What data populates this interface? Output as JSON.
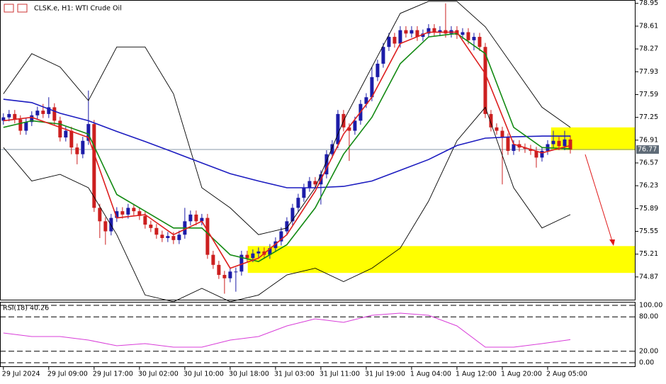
{
  "chart_data": [
    {
      "type": "candlestick",
      "title": "CLSK.e, H1: WTI Crude Oil",
      "ylim": [
        74.52,
        79.0
      ],
      "yticks": [
        78.95,
        78.61,
        78.27,
        77.93,
        77.59,
        77.25,
        76.91,
        76.57,
        76.23,
        75.89,
        75.55,
        75.21,
        74.87
      ],
      "xlim": [
        -0.6,
        111.5
      ],
      "xticks": [
        {
          "value": 0,
          "label": "29 Jul 2024"
        },
        {
          "value": 8,
          "label": "29 Jul 09:00"
        },
        {
          "value": 16,
          "label": "29 Jul 17:00"
        },
        {
          "value": 24,
          "label": "30 Jul 02:00"
        },
        {
          "value": 32,
          "label": "30 Jul 10:00"
        },
        {
          "value": 40,
          "label": "30 Jul 18:00"
        },
        {
          "value": 48,
          "label": "31 Jul 03:00"
        },
        {
          "value": 56,
          "label": "31 Jul 11:00"
        },
        {
          "value": 64,
          "label": "31 Jul 19:00"
        },
        {
          "value": 72,
          "label": "1 Aug 04:00"
        },
        {
          "value": 80,
          "label": "1 Aug 12:00"
        },
        {
          "value": 88,
          "label": "1 Aug 20:00"
        },
        {
          "value": 96,
          "label": "2 Aug 05:00"
        }
      ],
      "up_color": "#1c1ca8",
      "down_color": "#cc1f1f",
      "open": [
        77.2,
        77.25,
        77.3,
        77.22,
        77.05,
        77.18,
        77.28,
        77.35,
        77.3,
        77.4,
        77.2,
        76.95,
        77.05,
        76.8,
        76.7,
        76.9,
        77.15,
        75.9,
        75.7,
        75.55,
        75.75,
        75.85,
        75.8,
        75.9,
        75.85,
        75.78,
        75.65,
        75.6,
        75.5,
        75.45,
        75.48,
        75.42,
        75.5,
        75.7,
        75.8,
        75.7,
        75.75,
        75.2,
        75.05,
        74.9,
        74.85,
        74.95,
        74.95,
        75.2,
        75.15,
        75.22,
        75.25,
        75.2,
        75.3,
        75.4,
        75.55,
        75.7,
        75.9,
        76.05,
        76.2,
        76.3,
        76.25,
        76.4,
        76.7,
        76.85,
        77.3,
        77.1,
        77.05,
        77.2,
        77.45,
        77.55,
        77.85,
        78.05,
        78.3,
        78.45,
        78.35,
        78.55,
        78.5,
        78.55,
        78.45,
        78.5,
        78.58,
        78.52,
        78.55,
        78.5,
        78.55,
        78.48,
        78.52,
        78.4,
        78.45,
        78.3,
        77.3,
        77.1,
        77.05,
        76.95,
        76.75,
        76.85,
        76.8,
        76.78,
        76.75,
        76.65,
        76.75,
        76.85,
        76.9,
        76.82,
        76.92
      ],
      "high": [
        77.31,
        77.36,
        77.36,
        77.28,
        77.24,
        77.34,
        77.41,
        77.45,
        77.55,
        77.46,
        77.26,
        77.11,
        77.11,
        76.86,
        76.96,
        77.65,
        77.21,
        75.96,
        75.76,
        75.81,
        75.91,
        75.91,
        75.96,
        75.96,
        75.91,
        75.84,
        75.71,
        75.66,
        75.56,
        75.54,
        75.54,
        75.56,
        75.9,
        75.86,
        75.86,
        75.81,
        75.81,
        75.26,
        75.11,
        74.96,
        75.01,
        75.01,
        75.26,
        75.26,
        75.28,
        75.31,
        75.31,
        75.36,
        75.46,
        75.61,
        75.76,
        75.96,
        76.11,
        76.26,
        76.36,
        76.36,
        76.46,
        76.76,
        76.91,
        77.36,
        77.36,
        77.16,
        77.26,
        77.51,
        77.61,
        78.0,
        78.11,
        78.36,
        78.51,
        78.51,
        78.61,
        78.61,
        78.61,
        78.61,
        78.56,
        78.64,
        78.64,
        78.61,
        78.95,
        78.61,
        78.61,
        78.58,
        78.58,
        78.51,
        78.51,
        78.36,
        77.36,
        77.16,
        77.11,
        77.01,
        76.91,
        76.91,
        76.86,
        76.84,
        76.81,
        76.81,
        76.91,
        77.05,
        76.96,
        77.05,
        76.98
      ],
      "low": [
        77.14,
        77.19,
        77.16,
        76.99,
        76.99,
        77.12,
        77.22,
        77.24,
        77.24,
        77.14,
        76.89,
        76.89,
        76.7,
        76.55,
        76.64,
        76.84,
        75.84,
        75.45,
        75.35,
        75.49,
        75.69,
        75.74,
        75.74,
        75.79,
        75.72,
        75.59,
        75.54,
        75.44,
        75.39,
        75.39,
        75.36,
        75.36,
        75.44,
        75.64,
        75.64,
        75.64,
        75.14,
        74.99,
        74.84,
        74.62,
        74.79,
        74.65,
        74.89,
        75.09,
        75.09,
        75.16,
        75.14,
        75.14,
        75.24,
        75.34,
        75.49,
        75.64,
        75.84,
        75.99,
        76.14,
        76.19,
        75.95,
        76.34,
        76.64,
        76.79,
        77.04,
        76.6,
        76.99,
        77.14,
        77.39,
        77.49,
        77.79,
        77.99,
        78.24,
        78.29,
        78.29,
        78.44,
        78.44,
        78.39,
        78.39,
        78.44,
        78.46,
        78.46,
        78.44,
        78.44,
        78.42,
        78.42,
        78.34,
        78.25,
        78.24,
        77.24,
        77.04,
        76.99,
        76.25,
        76.69,
        76.69,
        76.74,
        76.72,
        76.69,
        76.5,
        76.59,
        76.69,
        76.79,
        76.76,
        76.76,
        76.71
      ],
      "close": [
        77.25,
        77.3,
        77.22,
        77.05,
        77.18,
        77.28,
        77.35,
        77.3,
        77.4,
        77.2,
        76.95,
        77.05,
        76.8,
        76.7,
        76.9,
        77.15,
        75.9,
        75.7,
        75.55,
        75.75,
        75.85,
        75.8,
        75.9,
        75.85,
        75.78,
        75.65,
        75.6,
        75.5,
        75.45,
        75.48,
        75.42,
        75.5,
        75.7,
        75.8,
        75.7,
        75.75,
        75.2,
        75.05,
        74.9,
        74.85,
        74.95,
        74.95,
        75.2,
        75.15,
        75.22,
        75.25,
        75.2,
        75.3,
        75.4,
        75.55,
        75.7,
        75.9,
        76.05,
        76.2,
        76.3,
        76.25,
        76.4,
        76.7,
        76.85,
        77.3,
        77.1,
        77.05,
        77.2,
        77.45,
        77.55,
        77.85,
        78.05,
        78.3,
        78.45,
        78.35,
        78.55,
        78.5,
        78.55,
        78.45,
        78.5,
        78.58,
        78.52,
        78.55,
        78.5,
        78.55,
        78.48,
        78.52,
        78.4,
        78.45,
        78.3,
        77.3,
        77.1,
        77.05,
        76.95,
        76.75,
        76.85,
        76.8,
        76.78,
        76.75,
        76.65,
        76.75,
        76.85,
        76.9,
        76.82,
        76.92,
        76.77
      ],
      "last_price": 76.77,
      "lines": [
        {
          "color": "#000000",
          "x": [
            0,
            5,
            10,
            15,
            20,
            25,
            30,
            35,
            40,
            45,
            50,
            55,
            60,
            65,
            70,
            75,
            80,
            85,
            90,
            95,
            100
          ],
          "values": [
            77.6,
            78.2,
            78.0,
            77.5,
            78.3,
            78.3,
            77.6,
            76.2,
            75.9,
            75.5,
            75.6,
            76.2,
            77.2,
            78.0,
            78.8,
            78.98,
            78.98,
            78.6,
            78.0,
            77.4,
            77.1
          ]
        },
        {
          "color": "#000000",
          "x": [
            0,
            5,
            10,
            15,
            20,
            25,
            30,
            35,
            40,
            45,
            50,
            55,
            60,
            65,
            70,
            75,
            80,
            85,
            90,
            95,
            100
          ],
          "values": [
            76.8,
            76.3,
            76.4,
            76.2,
            75.5,
            74.6,
            74.5,
            74.7,
            74.5,
            74.6,
            74.9,
            75.0,
            74.8,
            75.0,
            75.3,
            76.0,
            76.9,
            77.4,
            76.2,
            75.6,
            75.8
          ]
        },
        {
          "color": "#1c1cc0",
          "x": [
            0,
            5,
            10,
            15,
            20,
            25,
            30,
            35,
            40,
            45,
            50,
            55,
            60,
            65,
            70,
            75,
            80,
            85,
            90,
            95,
            100
          ],
          "values": [
            77.52,
            77.47,
            77.31,
            77.2,
            77.04,
            76.89,
            76.73,
            76.57,
            76.41,
            76.3,
            76.2,
            76.2,
            76.22,
            76.3,
            76.46,
            76.62,
            76.83,
            76.94,
            76.96,
            76.97,
            76.97
          ]
        },
        {
          "color": "#138a13",
          "x": [
            0,
            5,
            10,
            15,
            20,
            25,
            30,
            35,
            40,
            45,
            50,
            55,
            60,
            65,
            70,
            75,
            80,
            85,
            90,
            95,
            100
          ],
          "values": [
            77.1,
            77.2,
            77.15,
            77.0,
            76.1,
            75.85,
            75.6,
            75.6,
            75.2,
            75.1,
            75.35,
            75.9,
            76.7,
            77.25,
            78.05,
            78.45,
            78.5,
            78.2,
            77.1,
            76.8,
            76.78
          ]
        },
        {
          "color": "#dd1e1e",
          "x": [
            0,
            5,
            10,
            15,
            20,
            25,
            30,
            35,
            40,
            45,
            50,
            55,
            60,
            65,
            70,
            75,
            80,
            85,
            90,
            95,
            100
          ],
          "values": [
            77.2,
            77.25,
            77.1,
            76.95,
            75.75,
            75.8,
            75.5,
            75.7,
            75.0,
            75.15,
            75.5,
            76.15,
            77.0,
            77.55,
            78.35,
            78.52,
            78.52,
            77.9,
            76.85,
            76.72,
            76.83
          ]
        }
      ],
      "zones": [
        {
          "x_start": 96.6,
          "low": 76.76,
          "high": 77.1,
          "color": "#ffff00"
        },
        {
          "x_start": 43.1,
          "low": 74.93,
          "high": 75.33,
          "color": "#ffff00"
        }
      ]
    },
    {
      "type": "line",
      "title": "RSI(18) 40.26",
      "ylim": [
        0,
        100
      ],
      "yticks": [
        {
          "value": 100,
          "label": "100.00"
        },
        {
          "value": 80,
          "label": "80.00"
        },
        {
          "value": 20,
          "label": "20.00"
        },
        {
          "value": 0,
          "label": "0.00"
        }
      ],
      "series": [
        {
          "color": "#d83cd8",
          "x": [
            0,
            5,
            10,
            15,
            20,
            25,
            30,
            35,
            40,
            45,
            50,
            55,
            60,
            65,
            70,
            75,
            80,
            85,
            90,
            95,
            100
          ],
          "values": [
            51.9,
            45.7,
            45.7,
            39.5,
            29.6,
            33.3,
            27.2,
            27.2,
            39.5,
            45.7,
            64.2,
            76.5,
            70.4,
            82.7,
            86.4,
            82.7,
            64.2,
            27.2,
            27.2,
            33.3,
            40.26
          ]
        }
      ]
    }
  ]
}
